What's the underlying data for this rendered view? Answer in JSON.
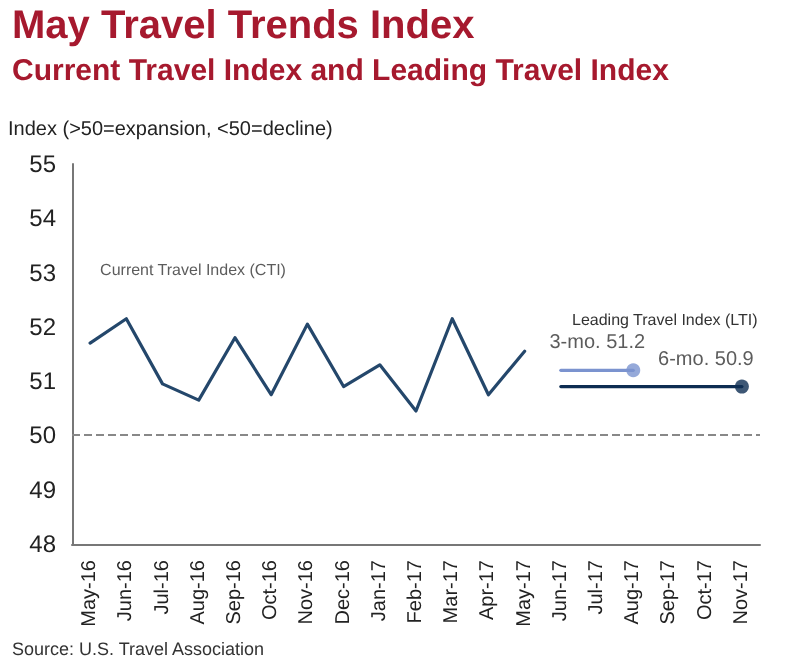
{
  "chart_data": {
    "type": "line",
    "title": "May Travel Trends Index",
    "subtitle": "Current Travel Index and Leading Travel Index",
    "ylabel": "Index (>50=expansion, <50=decline)",
    "categories": [
      "May-16",
      "Jun-16",
      "Jul-16",
      "Aug-16",
      "Sep-16",
      "Oct-16",
      "Nov-16",
      "Dec-16",
      "Jan-17",
      "Feb-17",
      "Mar-17",
      "Apr-17",
      "May-17",
      "Jun-17",
      "Jul-17",
      "Aug-17",
      "Sep-17",
      "Oct-17",
      "Nov-17"
    ],
    "series": [
      {
        "name": "Current Travel Index (CTI)",
        "color": "#24476b",
        "values": [
          51.7,
          52.15,
          50.95,
          50.65,
          51.8,
          50.75,
          52.05,
          50.9,
          51.3,
          50.45,
          52.15,
          50.75,
          51.55,
          null,
          null,
          null,
          null,
          null,
          null
        ]
      },
      {
        "color": "#7b93cf",
        "values": [
          null,
          null,
          null,
          null,
          null,
          null,
          null,
          null,
          null,
          null,
          null,
          null,
          null,
          51.2,
          51.2,
          51.2,
          null,
          null,
          null
        ]
      },
      {
        "type": "scatter",
        "color": "#7b93cf",
        "marker": "circle",
        "values": [
          null,
          null,
          null,
          null,
          null,
          null,
          null,
          null,
          null,
          null,
          null,
          null,
          null,
          null,
          null,
          51.2,
          null,
          null,
          null
        ],
        "value_labels": [
          null,
          null,
          null,
          null,
          null,
          null,
          null,
          null,
          null,
          null,
          null,
          null,
          null,
          null,
          null,
          "3-mo. 51.2",
          null,
          null,
          null
        ]
      },
      {
        "color": "#0d2d52",
        "values": [
          null,
          null,
          null,
          null,
          null,
          null,
          null,
          null,
          null,
          null,
          null,
          null,
          null,
          50.9,
          50.9,
          50.9,
          50.9,
          50.9,
          50.9
        ]
      },
      {
        "type": "scatter",
        "color": "#0d2d52",
        "marker": "circle",
        "values": [
          null,
          null,
          null,
          null,
          null,
          null,
          null,
          null,
          null,
          null,
          null,
          null,
          null,
          null,
          null,
          null,
          null,
          null,
          50.9
        ],
        "value_labels": [
          null,
          null,
          null,
          null,
          null,
          null,
          null,
          null,
          null,
          null,
          null,
          null,
          null,
          null,
          null,
          null,
          null,
          null,
          "6-mo. 50.9"
        ]
      }
    ],
    "ylim": [
      48,
      55
    ],
    "yticks": [
      48,
      49,
      50,
      51,
      52,
      53,
      54,
      55
    ],
    "grid": false,
    "legend": false,
    "ref_lines": [
      {
        "axis": "y",
        "value": 50,
        "color": "#888888",
        "line_style": "dashed"
      }
    ],
    "annotations": [
      "Leading Travel Index (LTI)",
      "Source: U.S. Travel Association"
    ]
  }
}
